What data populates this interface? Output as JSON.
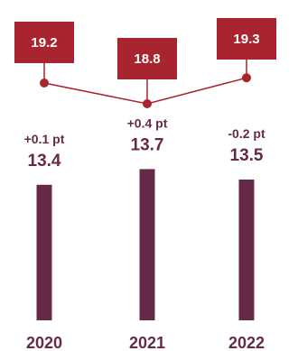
{
  "chart_data": {
    "type": "bar",
    "categories": [
      "2020",
      "2021",
      "2022"
    ],
    "series": [
      {
        "values": [
          13.4,
          13.7,
          13.5
        ]
      },
      {
        "type": "line",
        "values": [
          19.2,
          18.8,
          19.3
        ]
      }
    ],
    "changes": [
      "+0.1 pt",
      "+0.4 pt",
      "-0.2 pt"
    ],
    "colors": {
      "bar": "#662a48",
      "callout": "#a8242e",
      "line": "#a8242e",
      "change_text": "#662a48",
      "value_text": "#662a48",
      "year_text": "#662a48"
    },
    "grid": false,
    "legend": "none"
  }
}
